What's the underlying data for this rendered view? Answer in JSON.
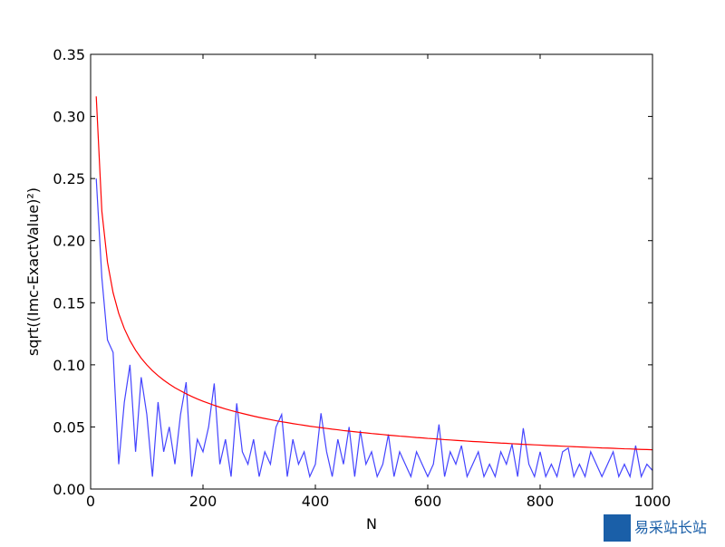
{
  "chart_data": {
    "type": "line",
    "xlabel": "N",
    "ylabel": "sqrt((Imc-ExactValue)²)",
    "x": [
      10,
      20,
      30,
      40,
      50,
      60,
      70,
      80,
      90,
      100,
      110,
      120,
      130,
      140,
      150,
      160,
      170,
      180,
      190,
      200,
      210,
      220,
      230,
      240,
      250,
      260,
      270,
      280,
      290,
      300,
      310,
      320,
      330,
      340,
      350,
      360,
      370,
      380,
      390,
      400,
      410,
      420,
      430,
      440,
      450,
      460,
      470,
      480,
      490,
      500,
      510,
      520,
      530,
      540,
      550,
      560,
      570,
      580,
      590,
      600,
      610,
      620,
      630,
      640,
      650,
      660,
      670,
      680,
      690,
      700,
      710,
      720,
      730,
      740,
      750,
      760,
      770,
      780,
      790,
      800,
      810,
      820,
      830,
      840,
      850,
      860,
      870,
      880,
      890,
      900,
      910,
      920,
      930,
      940,
      950,
      960,
      970,
      980,
      990,
      1000
    ],
    "series": [
      {
        "color": "#4444ff",
        "values": [
          0.25,
          0.17,
          0.12,
          0.11,
          0.02,
          0.07,
          0.1,
          0.03,
          0.09,
          0.06,
          0.01,
          0.07,
          0.03,
          0.05,
          0.02,
          0.06,
          0.086,
          0.01,
          0.04,
          0.03,
          0.05,
          0.085,
          0.02,
          0.04,
          0.01,
          0.069,
          0.03,
          0.02,
          0.04,
          0.01,
          0.03,
          0.02,
          0.05,
          0.06,
          0.01,
          0.04,
          0.02,
          0.03,
          0.01,
          0.02,
          0.061,
          0.03,
          0.01,
          0.04,
          0.02,
          0.05,
          0.01,
          0.047,
          0.02,
          0.03,
          0.01,
          0.02,
          0.044,
          0.01,
          0.03,
          0.02,
          0.01,
          0.03,
          0.02,
          0.01,
          0.02,
          0.052,
          0.01,
          0.03,
          0.02,
          0.035,
          0.01,
          0.02,
          0.03,
          0.01,
          0.02,
          0.01,
          0.03,
          0.02,
          0.036,
          0.01,
          0.049,
          0.02,
          0.01,
          0.03,
          0.01,
          0.02,
          0.01,
          0.03,
          0.033,
          0.01,
          0.02,
          0.01,
          0.03,
          0.02,
          0.01,
          0.02,
          0.03,
          0.01,
          0.02,
          0.01,
          0.035,
          0.01,
          0.02,
          0.015
        ]
      },
      {
        "color": "#ff0000",
        "values": [
          0.3162,
          0.2236,
          0.1826,
          0.1581,
          0.1414,
          0.1291,
          0.1195,
          0.1118,
          0.1054,
          0.1,
          0.0953,
          0.0913,
          0.0877,
          0.0845,
          0.0816,
          0.0791,
          0.0767,
          0.0745,
          0.0725,
          0.0707,
          0.069,
          0.0674,
          0.0659,
          0.0645,
          0.0632,
          0.062,
          0.0609,
          0.0598,
          0.0587,
          0.0577,
          0.0568,
          0.0559,
          0.055,
          0.0542,
          0.0535,
          0.0527,
          0.052,
          0.0513,
          0.0506,
          0.05,
          0.0494,
          0.0488,
          0.0482,
          0.0477,
          0.0471,
          0.0466,
          0.0461,
          0.0456,
          0.0452,
          0.0447,
          0.0443,
          0.0439,
          0.0434,
          0.043,
          0.0426,
          0.0423,
          0.0419,
          0.0415,
          0.0412,
          0.0408,
          0.0405,
          0.0402,
          0.0398,
          0.0395,
          0.0392,
          0.0389,
          0.0386,
          0.0383,
          0.0381,
          0.0378,
          0.0375,
          0.0373,
          0.037,
          0.0368,
          0.0365,
          0.0363,
          0.036,
          0.0358,
          0.0356,
          0.0354,
          0.0351,
          0.0349,
          0.0347,
          0.0345,
          0.0343,
          0.0341,
          0.0339,
          0.0337,
          0.0335,
          0.0333,
          0.0331,
          0.033,
          0.0328,
          0.0326,
          0.0324,
          0.0323,
          0.0321,
          0.0319,
          0.0318,
          0.0316
        ]
      }
    ],
    "xlim": [
      0,
      1000
    ],
    "xticks": [
      0,
      200,
      400,
      600,
      800,
      1000
    ],
    "ylim": [
      0,
      0.35
    ],
    "yticks": [
      {
        "value": 0,
        "label": "0.00"
      },
      {
        "value": 0.05,
        "label": "0.05"
      },
      {
        "value": 0.1,
        "label": "0.10"
      },
      {
        "value": 0.15,
        "label": "0.15"
      },
      {
        "value": 0.2,
        "label": "0.20"
      },
      {
        "value": 0.25,
        "label": "0.25"
      },
      {
        "value": 0.3,
        "label": "0.30"
      },
      {
        "value": 0.35,
        "label": "0.35"
      }
    ],
    "grid": false,
    "watermark": "易采站长站"
  }
}
